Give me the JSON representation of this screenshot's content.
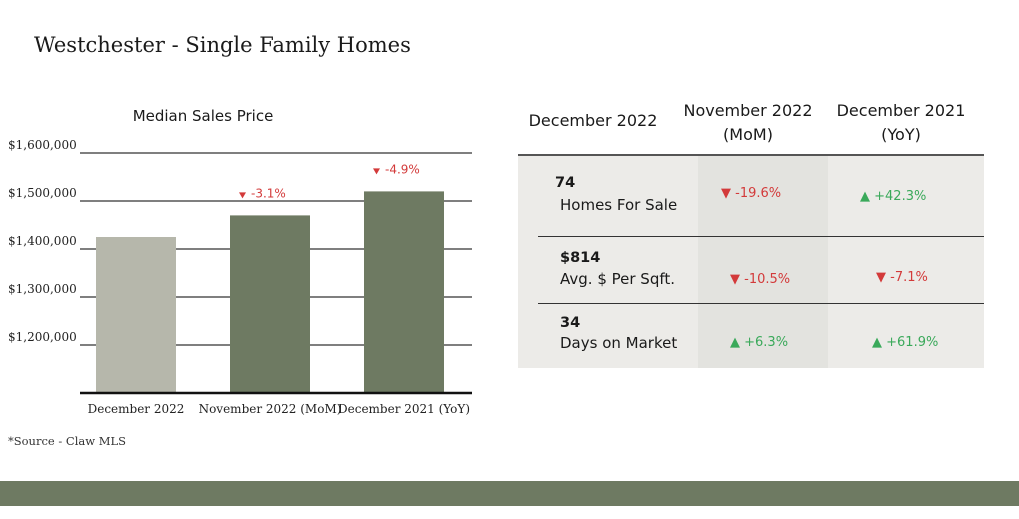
{
  "title": "Westchester - Single Family Homes",
  "source": "*Source - Claw MLS",
  "colors": {
    "bar_current": "#b6b7ab",
    "bar_past": "#6e7a62",
    "down": "#d33a3a",
    "up": "#3aa95a",
    "band": "#6e7a62"
  },
  "chart_data": {
    "type": "bar",
    "title": "Median Sales Price",
    "categories": [
      "December  2022",
      "November 2022 (MoM)",
      "December 2021 (YoY)"
    ],
    "values": [
      1425000,
      1470000,
      1520000
    ],
    "ylim": [
      1100000,
      1600000
    ],
    "yticks": [
      1200000,
      1300000,
      1400000,
      1500000,
      1600000
    ],
    "ytick_labels": [
      "$1,200,000",
      "$1,300,000",
      "$1,400,000",
      "$1,500,000",
      "$1,600,000"
    ],
    "annotations": [
      "",
      "-3.1%",
      "-4.9%"
    ],
    "xlabel": "",
    "ylabel": ""
  },
  "table": {
    "headers": [
      "December 2022",
      "November 2022\n(MoM)",
      "December 2021\n(YoY)"
    ],
    "rows": [
      {
        "value": "74",
        "label": "Homes For Sale",
        "mom": "-19.6%",
        "mom_dir": "down",
        "yoy": "+42.3%",
        "yoy_dir": "up"
      },
      {
        "value": "$814",
        "label": "Avg. $ Per Sqft.",
        "mom": "-10.5%",
        "mom_dir": "down",
        "yoy": "-7.1%",
        "yoy_dir": "down"
      },
      {
        "value": "34",
        "label": "Days on Market",
        "mom": "+6.3%",
        "mom_dir": "up",
        "yoy": "+61.9%",
        "yoy_dir": "up"
      }
    ]
  }
}
